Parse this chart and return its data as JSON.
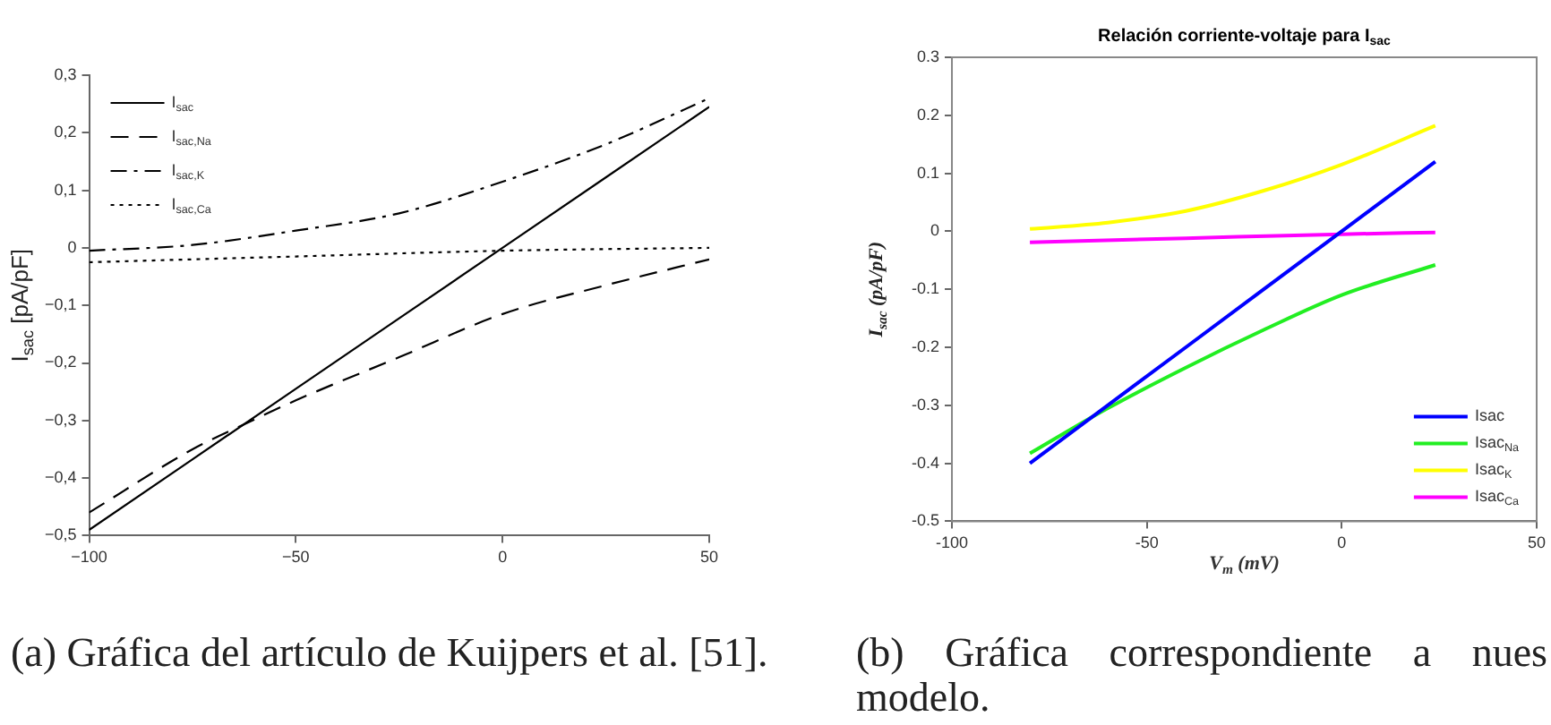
{
  "chart_data": [
    {
      "type": "line",
      "ylabel": "I$_{sac}$ [pA/pF]",
      "xlim": [
        -100,
        50
      ],
      "ylim": [
        -0.5,
        0.3
      ],
      "xticks": [
        {
          "value": -100,
          "label": "−100"
        },
        {
          "value": -50,
          "label": "−50"
        },
        {
          "value": 0,
          "label": "0"
        },
        {
          "value": 50,
          "label": "50"
        }
      ],
      "yticks": [
        {
          "value": -0.5,
          "label": "−0,5"
        },
        {
          "value": -0.4,
          "label": "−0,4"
        },
        {
          "value": -0.3,
          "label": "−0,3"
        },
        {
          "value": -0.2,
          "label": "−0,2"
        },
        {
          "value": -0.1,
          "label": "−0,1"
        },
        {
          "value": 0,
          "label": "0"
        },
        {
          "value": 0.1,
          "label": "0,1"
        },
        {
          "value": 0.2,
          "label": "0,2"
        },
        {
          "value": 0.3,
          "label": "0,3"
        }
      ],
      "grid": false,
      "legend": "top left",
      "marker": "none",
      "annotations": [
        "(a) Gráfica del artículo de Kuijpers et al. [51]."
      ],
      "series": [
        {
          "name": "I$_{sac}$",
          "color": "#000000",
          "line_style": "solid",
          "x": [
            -100,
            -50,
            0,
            50
          ],
          "values": [
            -0.49,
            -0.245,
            0,
            0.245
          ]
        },
        {
          "name": "I$_{sac,Na}$",
          "color": "#000000",
          "line_style": "dashed",
          "x": [
            -100,
            -75,
            -62,
            -50,
            -25,
            0,
            25,
            50
          ],
          "values": [
            -0.46,
            -0.35,
            -0.305,
            -0.265,
            -0.19,
            -0.115,
            -0.065,
            -0.02
          ]
        },
        {
          "name": "I$_{sac,K}$",
          "color": "#000000",
          "line_style": "dashdot",
          "x": [
            -100,
            -75,
            -50,
            -25,
            0,
            25,
            50
          ],
          "values": [
            -0.005,
            0.005,
            0.03,
            0.06,
            0.115,
            0.18,
            0.26
          ]
        },
        {
          "name": "I$_{sac,Ca}$",
          "color": "#000000",
          "line_style": "dotted",
          "x": [
            -100,
            -50,
            0,
            50
          ],
          "values": [
            -0.025,
            -0.015,
            -0.005,
            0
          ]
        }
      ]
    },
    {
      "type": "line",
      "title": "Relación corriente-voltaje para I$_{sac}$",
      "xlabel": "V$_{m}$ (mV)",
      "ylabel": "I$_{sac}$ (pA/pF)",
      "xlim": [
        -100,
        50
      ],
      "ylim": [
        -0.5,
        0.3
      ],
      "xticks": [
        -100,
        -50,
        0,
        50
      ],
      "yticks": [
        -0.5,
        -0.4,
        -0.3,
        -0.2,
        -0.1,
        0,
        0.1,
        0.2,
        0.3
      ],
      "grid": false,
      "legend": "bottom right",
      "marker": "none",
      "annotations": [
        "(b) Gráfica correspondiente a nues modelo."
      ],
      "series": [
        {
          "name": "Isac",
          "color": "#0000ff",
          "line_style": "solid",
          "x": [
            -80,
            -40,
            0,
            24
          ],
          "values": [
            -0.4,
            -0.2,
            0,
            0.12
          ]
        },
        {
          "name": "Isac$_{Na}$",
          "color": "#22ee22",
          "line_style": "solid",
          "x": [
            -80,
            -60,
            -40,
            -20,
            0,
            24
          ],
          "values": [
            -0.383,
            -0.305,
            -0.235,
            -0.17,
            -0.11,
            -0.058
          ]
        },
        {
          "name": "Isac$_{K}$",
          "color": "#ffff00",
          "line_style": "solid",
          "x": [
            -80,
            -60,
            -40,
            -20,
            0,
            24
          ],
          "values": [
            0.004,
            0.015,
            0.035,
            0.07,
            0.115,
            0.182
          ]
        },
        {
          "name": "Isac$_{Ca}$",
          "color": "#ff00ff",
          "line_style": "solid",
          "x": [
            -80,
            -40,
            0,
            24
          ],
          "values": [
            -0.019,
            -0.012,
            -0.005,
            -0.002
          ]
        }
      ]
    }
  ]
}
